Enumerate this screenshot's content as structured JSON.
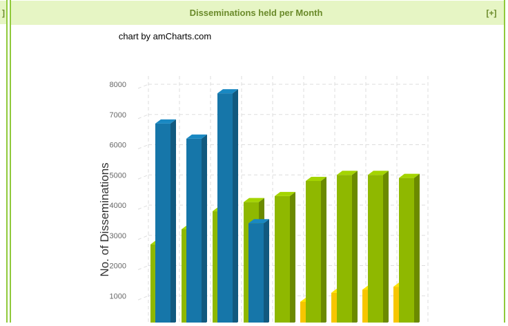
{
  "panel_title": "Disseminations held per Month",
  "panel_button": "[+]",
  "left_panel_edge": "]",
  "credit": "chart by amCharts.com",
  "chart_data": {
    "type": "bar3d",
    "ylabel": "No. of Disseminations",
    "categories": [
      null,
      null,
      null,
      null,
      null,
      null,
      null,
      null,
      null
    ],
    "series": [
      {
        "color": "#f7c600",
        "values": [
          null,
          null,
          null,
          null,
          null,
          800,
          1100,
          1200,
          1300
        ]
      },
      {
        "color": "#8fb800",
        "values": [
          2700,
          3200,
          3800,
          4100,
          4300,
          4800,
          5000,
          5000,
          4900
        ]
      },
      {
        "color": "#1676a9",
        "values": [
          6700,
          6200,
          7700,
          3400,
          null,
          null,
          null,
          null,
          null
        ]
      }
    ],
    "ylim": [
      0,
      8000
    ],
    "yticks": [
      1000,
      2000,
      3000,
      4000,
      5000,
      6000,
      7000,
      8000
    ],
    "grid": true
  }
}
